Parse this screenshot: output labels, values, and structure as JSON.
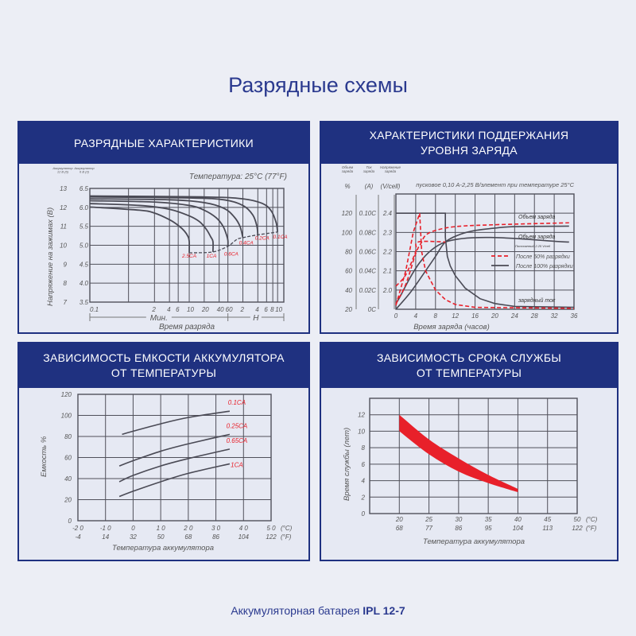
{
  "page_title": "Разрядные схемы",
  "footer": {
    "text": "Аккумуляторная батарея ",
    "model": "IPL 12-7"
  },
  "colors": {
    "navy": "#1f3180",
    "red": "#e8202a",
    "line": "#4a4a55",
    "grid": "#50505a"
  },
  "panels": [
    {
      "title": [
        "РАЗРЯДНЫЕ ХАРАКТЕРИСТИКИ"
      ]
    },
    {
      "title": [
        "ХАРАКТЕРИСТИКИ ПОДДЕРЖАНИЯ",
        "УРОВНЯ ЗАРЯДА"
      ]
    },
    {
      "title": [
        "ЗАВИСИМОСТЬ ЕМКОСТИ АККУМУЛЯТОРА",
        "ОТ ТЕМПЕРАТУРЫ"
      ]
    },
    {
      "title": [
        "ЗАВИСИМОСТЬ СРОКА СЛУЖБЫ",
        "ОТ ТЕМПЕРАТУРЫ"
      ]
    }
  ],
  "chart_data": [
    {
      "type": "line",
      "title": "Температура: 25°C (77°F)",
      "xlabel": "Время разряда",
      "ylabel": "Напряжение на зажимах (В)",
      "x_scale": "log",
      "x_unit": "min",
      "xlim": [
        0.1,
        800
      ],
      "ylim": [
        7,
        13
      ],
      "grid": true,
      "y_headers": [
        "Аккумулятор 12 В (6)",
        "Аккумулятор 6 В (3)"
      ],
      "y_ticks": [
        {
          "v": 7,
          "l": "7",
          "l2": "3.5"
        },
        {
          "v": 8,
          "l": "8",
          "l2": "4.0"
        },
        {
          "v": 9,
          "l": "9",
          "l2": "4.5"
        },
        {
          "v": 10,
          "l": "10",
          "l2": "5.0"
        },
        {
          "v": 11,
          "l": "11",
          "l2": "5.5"
        },
        {
          "v": 12,
          "l": "12",
          "l2": "6.0"
        },
        {
          "v": 13,
          "l": "13",
          "l2": "6.5"
        }
      ],
      "x_ticks": [
        {
          "v": 0.1,
          "l": "0.1"
        },
        {
          "v": 2,
          "l": "2"
        },
        {
          "v": 4,
          "l": "4"
        },
        {
          "v": 6,
          "l": "6"
        },
        {
          "v": 10,
          "l": "10"
        },
        {
          "v": 20,
          "l": "20"
        },
        {
          "v": 40,
          "l": "40"
        },
        {
          "v": 60,
          "l": "60"
        },
        {
          "v": 120,
          "l": "2"
        },
        {
          "v": 240,
          "l": "4"
        },
        {
          "v": 360,
          "l": "6"
        },
        {
          "v": 480,
          "l": "8"
        },
        {
          "v": 600,
          "l": "10"
        }
      ],
      "x_groups": [
        {
          "label": "Мин.",
          "from": 0.1,
          "to": 60
        },
        {
          "label": "H",
          "from": 60,
          "to": 800
        }
      ],
      "series": [
        {
          "name": "2.5CA",
          "x": [
            0.1,
            1,
            2,
            4,
            6,
            8,
            9.5,
            10,
            10
          ],
          "y": [
            12.02,
            11.85,
            11.7,
            11.35,
            11.05,
            10.75,
            10.45,
            10.2,
            9.6
          ]
        },
        {
          "name": "1CA",
          "x": [
            0.1,
            1,
            4,
            10,
            16,
            22,
            27,
            30,
            30
          ],
          "y": [
            12.2,
            12.1,
            11.9,
            11.55,
            11.25,
            10.85,
            10.45,
            10.2,
            9.65
          ]
        },
        {
          "name": "0.6CA",
          "x": [
            0.1,
            2,
            10,
            20,
            35,
            48,
            57,
            60,
            60
          ],
          "y": [
            12.35,
            12.28,
            12.1,
            11.85,
            11.45,
            11.0,
            10.5,
            10.25,
            9.95
          ]
        },
        {
          "name": "0.4CA",
          "x": [
            0.1,
            4,
            20,
            50,
            80,
            105,
            120
          ],
          "y": [
            12.45,
            12.4,
            12.25,
            11.95,
            11.5,
            11.0,
            10.4
          ]
        },
        {
          "name": "0.2CA",
          "x": [
            0.1,
            10,
            50,
            120,
            190,
            230,
            240
          ],
          "y": [
            12.55,
            12.5,
            12.4,
            12.1,
            11.6,
            11.0,
            10.5
          ]
        },
        {
          "name": "0.1CA",
          "x": [
            0.1,
            20,
            120,
            300,
            450,
            560,
            600
          ],
          "y": [
            12.6,
            12.55,
            12.45,
            12.2,
            11.8,
            11.2,
            10.7
          ]
        }
      ],
      "cutoff": {
        "x": [
          10,
          30,
          60,
          90,
          120,
          240,
          600
        ],
        "y": [
          9.6,
          9.65,
          9.95,
          10.3,
          10.4,
          10.55,
          10.7
        ]
      },
      "labels": [
        {
          "t": "2.5CA",
          "x": 10,
          "y": 9.35
        },
        {
          "t": "1CA",
          "x": 28,
          "y": 9.35
        },
        {
          "t": "0.6CA",
          "x": 70,
          "y": 9.45
        },
        {
          "t": "0.4CA",
          "x": 140,
          "y": 10.05
        },
        {
          "t": "0.2CA",
          "x": 270,
          "y": 10.3
        },
        {
          "t": "0.1CA",
          "x": 680,
          "y": 10.35
        }
      ]
    },
    {
      "type": "line",
      "title": "пусковое 0,10 А-2,25 В/элемент при температуре 25°C",
      "xlabel": "Время заряда (часов)",
      "xlim": [
        0,
        36
      ],
      "ylim_V": [
        1.9,
        2.5
      ],
      "grid": true,
      "axis_headers": [
        {
          "small": "Объем заряда",
          "unit": "%"
        },
        {
          "small": "Ток заряда",
          "unit": "(A)"
        },
        {
          "small": "Напряжение заряда",
          "unit": "(V/cell)"
        }
      ],
      "x_ticks": [
        0,
        4,
        8,
        12,
        16,
        20,
        24,
        28,
        32,
        36
      ],
      "y_ticks_pct": [
        20,
        40,
        60,
        80,
        100,
        120
      ],
      "y_ticks_A": [
        "0C",
        "0.02C",
        "0.04C",
        "0.06C",
        "0.08C",
        "0.10C"
      ],
      "y_ticks_V": [
        2.0,
        2.1,
        2.2,
        2.3,
        2.4
      ],
      "series": [
        {
          "name": "После 100% разрядки",
          "kind": "current",
          "unit": "C",
          "x": [
            0,
            10,
            10,
            10.4,
            11,
            12,
            14,
            17,
            20,
            24,
            36
          ],
          "y": [
            0.1,
            0.1,
            0.075,
            0.055,
            0.045,
            0.035,
            0.022,
            0.011,
            0.006,
            0.003,
            0.002
          ]
        },
        {
          "name": "После 100% разрядки",
          "kind": "voltage",
          "unit": "V/cell",
          "x": [
            0,
            10,
            35
          ],
          "y": [
            1.93,
            2.25,
            2.25
          ]
        },
        {
          "name": "После 100% разрядки",
          "kind": "volume",
          "unit": "%",
          "x": [
            0,
            3,
            6,
            8,
            10,
            13,
            16,
            20,
            24,
            35
          ],
          "y": [
            20,
            38,
            60,
            75,
            90,
            98,
            102,
            104.5,
            106,
            106.5
          ]
        },
        {
          "name": "После 50% разрядки",
          "kind": "current",
          "unit": "C",
          "x": [
            0,
            2,
            3.5,
            4.8,
            4.8,
            5.2,
            6,
            8,
            10,
            12,
            16,
            36
          ],
          "y": [
            0.004,
            0.04,
            0.08,
            0.1,
            0.1,
            0.06,
            0.04,
            0.02,
            0.01,
            0.005,
            0.002,
            0.001
          ]
        },
        {
          "name": "После 50% разрядки",
          "kind": "voltage",
          "unit": "V/cell",
          "x": [
            0,
            2,
            4,
            4.5,
            10
          ],
          "y": [
            2.02,
            2.08,
            2.2,
            2.25,
            2.25
          ]
        },
        {
          "name": "После 50% разрядки",
          "kind": "volume",
          "unit": "%",
          "x": [
            0,
            2,
            4,
            5,
            6,
            8,
            12,
            20,
            35
          ],
          "y": [
            26,
            46,
            78,
            88,
            97,
            102,
            106,
            108,
            110
          ]
        }
      ],
      "legend": [
        {
          "label": "После 50% разрядки",
          "style": "dashed",
          "color": "#e8202a"
        },
        {
          "label": "После 100% разрядки",
          "style": "solid",
          "color": "#4a4a55"
        }
      ],
      "annotations": [
        "Объем заряда",
        "Объем заряда",
        "Постоянный 2.25 V/cell",
        "зарядный ток"
      ]
    },
    {
      "type": "line",
      "xlabel": "Температура аккумулятора",
      "ylabel": "Емкость %",
      "xlim": [
        -20,
        50
      ],
      "ylim": [
        0,
        120
      ],
      "grid": true,
      "x_ticks": [
        {
          "c": "-2 0",
          "f": "-4",
          "v": -20
        },
        {
          "c": "-1 0",
          "f": "14",
          "v": -10
        },
        {
          "c": "0",
          "f": "32",
          "v": 0
        },
        {
          "c": "1 0",
          "f": "50",
          "v": 10
        },
        {
          "c": "2 0",
          "f": "68",
          "v": 20
        },
        {
          "c": "3 0",
          "f": "86",
          "v": 30
        },
        {
          "c": "4 0",
          "f": "104",
          "v": 40
        },
        {
          "c": "5 0",
          "f": "122",
          "v": 50
        }
      ],
      "x_units": [
        "(°C)",
        "(°F)"
      ],
      "y_ticks": [
        0,
        20,
        40,
        60,
        80,
        100,
        120
      ],
      "series": [
        {
          "name": "0.1CA",
          "x": [
            -4,
            0,
            10,
            20,
            35
          ],
          "y": [
            82,
            85,
            92,
            98,
            104
          ]
        },
        {
          "name": "0.25CA",
          "x": [
            -5,
            0,
            10,
            20,
            35
          ],
          "y": [
            52,
            57,
            66,
            73,
            82
          ]
        },
        {
          "name": "0.65CA",
          "x": [
            -5,
            0,
            10,
            20,
            35
          ],
          "y": [
            37,
            43,
            52,
            59,
            68
          ]
        },
        {
          "name": "1CA",
          "x": [
            -5,
            0,
            10,
            20,
            35
          ],
          "y": [
            23,
            28,
            37,
            45,
            54
          ]
        }
      ]
    },
    {
      "type": "area",
      "xlabel": "Температура аккумулятора",
      "ylabel": "Время службы (лет)",
      "xlim": [
        15,
        50
      ],
      "ylim": [
        0,
        14
      ],
      "grid": true,
      "x_ticks": [
        {
          "c": "20",
          "f": "68",
          "v": 20
        },
        {
          "c": "25",
          "f": "77",
          "v": 25
        },
        {
          "c": "30",
          "f": "86",
          "v": 30
        },
        {
          "c": "35",
          "f": "95",
          "v": 35
        },
        {
          "c": "40",
          "f": "104",
          "v": 40
        },
        {
          "c": "45",
          "f": "113",
          "v": 45
        },
        {
          "c": "50",
          "f": "122",
          "v": 50
        }
      ],
      "x_units": [
        "(°C)",
        "(°F)"
      ],
      "y_ticks": [
        0,
        2,
        4,
        6,
        8,
        10,
        12
      ],
      "band": {
        "x": [
          20,
          25,
          30,
          35,
          40
        ],
        "upper": [
          12,
          9,
          6.7,
          4.7,
          3.0
        ],
        "lower": [
          10,
          7.2,
          5.1,
          3.7,
          2.6
        ]
      }
    }
  ]
}
